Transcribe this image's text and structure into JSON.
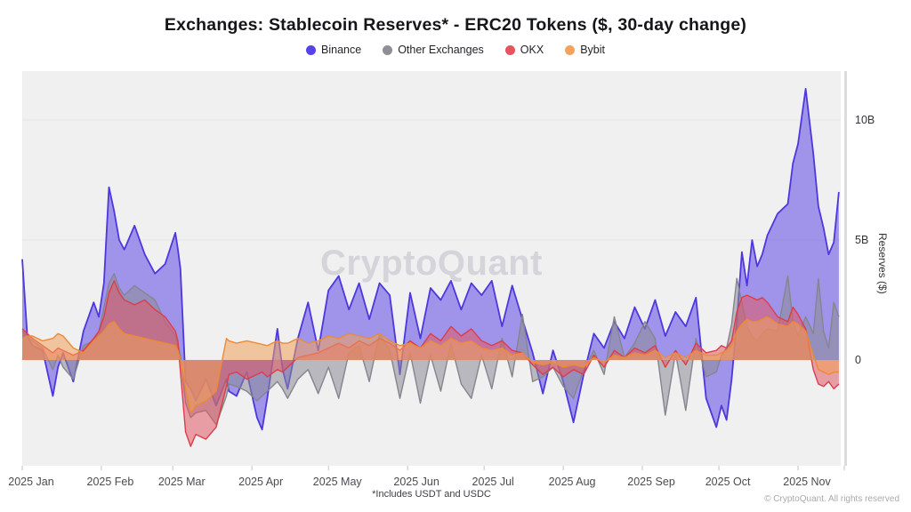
{
  "title": "Exchanges: Stablecoin Reserves* - ERC20 Tokens ($, 30-day change)",
  "watermark": "CryptoQuant",
  "footnote": "*Includes USDT and USDC",
  "copyright": "© CryptoQuant. All rights reserved",
  "legend": {
    "items": [
      {
        "label": "Binance",
        "color": "#5643e6"
      },
      {
        "label": "Other Exchanges",
        "color": "#8f8f98"
      },
      {
        "label": "OKX",
        "color": "#e4555f"
      },
      {
        "label": "Bybit",
        "color": "#f5a25d"
      }
    ]
  },
  "y_axis": {
    "label": "Reserves ($)"
  },
  "chart_data": {
    "type": "area",
    "title": "Exchanges: Stablecoin Reserves* - ERC20 Tokens ($, 30-day change)",
    "xlabel": "",
    "ylabel": "Reserves ($)",
    "x_unit": "days since 2025-01-01",
    "baseline": 0,
    "grid": true,
    "legend_position": "top",
    "ylim": [
      -4.4,
      12.0
    ],
    "yticks": [
      {
        "label": "10B",
        "value": 10
      },
      {
        "label": "5B",
        "value": 5
      },
      {
        "label": "0",
        "value": 0
      }
    ],
    "xticks": [
      {
        "label": "2025 Jan",
        "day": 0
      },
      {
        "label": "2025 Feb",
        "day": 31
      },
      {
        "label": "2025 Mar",
        "day": 59
      },
      {
        "label": "2025 Apr",
        "day": 90
      },
      {
        "label": "2025 May",
        "day": 120
      },
      {
        "label": "2025 Jun",
        "day": 151
      },
      {
        "label": "2025 Jul",
        "day": 181
      },
      {
        "label": "2025 Aug",
        "day": 212
      },
      {
        "label": "2025 Sep",
        "day": 243
      },
      {
        "label": "2025 Oct",
        "day": 273
      },
      {
        "label": "2025 Nov",
        "day": 304
      }
    ],
    "x": [
      0,
      2,
      4,
      8,
      12,
      14,
      16,
      20,
      24,
      28,
      30,
      32,
      34,
      36,
      38,
      40,
      44,
      48,
      52,
      56,
      60,
      61,
      62,
      64,
      66,
      68,
      72,
      76,
      80,
      81,
      84,
      88,
      92,
      94,
      96,
      100,
      102,
      104,
      108,
      112,
      116,
      120,
      124,
      128,
      132,
      136,
      140,
      144,
      148,
      152,
      156,
      160,
      164,
      168,
      172,
      176,
      180,
      184,
      188,
      192,
      196,
      200,
      204,
      208,
      212,
      216,
      220,
      224,
      228,
      232,
      236,
      240,
      244,
      248,
      252,
      256,
      260,
      264,
      268,
      272,
      274,
      276,
      278,
      280,
      282,
      284,
      286,
      288,
      290,
      292,
      296,
      300,
      302,
      304,
      307,
      310,
      312,
      314,
      316,
      318,
      320
    ],
    "series": [
      {
        "name": "Binance",
        "color": "#4c38dd",
        "fill": "rgba(93,72,228,0.55)",
        "values": [
          4.2,
          1.0,
          0.6,
          0.4,
          -1.5,
          -0.3,
          0.3,
          -0.9,
          1.2,
          2.4,
          1.8,
          3.2,
          7.2,
          6.2,
          5.0,
          4.6,
          5.6,
          4.4,
          3.6,
          4.0,
          5.3,
          4.6,
          3.8,
          -0.9,
          -1.2,
          -1.7,
          -0.8,
          -1.9,
          -0.8,
          -1.3,
          -1.5,
          -0.5,
          -2.4,
          -2.9,
          -1.6,
          1.3,
          -0.4,
          -1.2,
          0.9,
          2.4,
          0.4,
          2.9,
          3.5,
          2.1,
          3.2,
          1.7,
          3.2,
          2.7,
          -0.6,
          2.8,
          0.9,
          3.0,
          2.5,
          3.3,
          2.1,
          3.2,
          2.7,
          3.3,
          1.4,
          3.1,
          1.7,
          0.3,
          -1.4,
          0.4,
          -0.9,
          -2.6,
          -0.6,
          1.1,
          0.5,
          1.6,
          0.9,
          2.2,
          1.3,
          2.5,
          1.0,
          2.0,
          1.4,
          2.6,
          -1.6,
          -2.8,
          -1.9,
          -2.5,
          -0.8,
          1.6,
          4.5,
          3.1,
          5.0,
          3.9,
          4.4,
          5.2,
          6.1,
          6.5,
          8.2,
          9.0,
          11.3,
          8.6,
          6.4,
          5.5,
          4.4,
          4.9,
          7.0
        ]
      },
      {
        "name": "Other Exchanges",
        "color": "#85858f",
        "fill": "rgba(138,138,148,0.55)",
        "values": [
          1.2,
          1.0,
          0.8,
          0.5,
          -0.4,
          0.2,
          -0.3,
          -0.8,
          0.6,
          0.8,
          1.2,
          2.2,
          3.2,
          3.6,
          3.0,
          2.7,
          3.1,
          2.8,
          2.5,
          1.6,
          1.0,
          0.6,
          0.2,
          -1.8,
          -2.4,
          -2.2,
          -2.1,
          -2.7,
          -1.5,
          -1.0,
          -1.1,
          -1.3,
          -1.7,
          -1.5,
          -1.3,
          -0.9,
          -1.2,
          -1.6,
          -0.8,
          -0.4,
          -1.4,
          -0.3,
          -1.6,
          0.3,
          0.6,
          -0.9,
          1.1,
          0.4,
          -1.6,
          0.3,
          -1.8,
          0.2,
          -1.3,
          0.7,
          -1.0,
          -1.6,
          0.2,
          -1.2,
          0.9,
          -0.7,
          1.9,
          -0.9,
          -0.7,
          -0.3,
          -1.1,
          -1.6,
          -0.4,
          0.4,
          -0.6,
          1.8,
          0.1,
          0.7,
          1.6,
          0.9,
          -2.3,
          0.3,
          -2.1,
          0.9,
          -0.7,
          -0.5,
          0.2,
          0.5,
          1.5,
          3.4,
          2.4,
          1.4,
          1.0,
          0.8,
          1.1,
          1.3,
          1.2,
          3.5,
          1.6,
          1.0,
          1.8,
          1.1,
          3.4,
          1.2,
          0.5,
          2.4,
          1.8
        ]
      },
      {
        "name": "OKX",
        "color": "#dc3d4b",
        "fill": "rgba(226,88,98,0.55)",
        "values": [
          1.3,
          1.1,
          0.9,
          0.6,
          0.3,
          0.5,
          0.4,
          0.2,
          0.4,
          0.9,
          1.2,
          1.8,
          2.8,
          3.3,
          2.8,
          2.5,
          2.3,
          2.5,
          2.1,
          1.8,
          1.2,
          0.8,
          -0.5,
          -3.0,
          -3.6,
          -3.1,
          -3.3,
          -2.8,
          -1.1,
          -0.6,
          -0.5,
          -0.8,
          -0.6,
          -0.5,
          -0.7,
          -0.4,
          -0.5,
          -0.3,
          0.1,
          0.2,
          0.3,
          0.5,
          0.7,
          0.5,
          0.8,
          0.6,
          0.9,
          0.7,
          0.4,
          0.8,
          0.5,
          1.1,
          0.8,
          1.4,
          1.0,
          1.3,
          0.8,
          0.6,
          0.8,
          0.4,
          0.3,
          -0.2,
          -0.6,
          -0.3,
          -0.7,
          -0.4,
          -0.6,
          0.2,
          -0.3,
          0.4,
          0.1,
          0.5,
          0.3,
          0.6,
          -0.3,
          0.4,
          -0.2,
          0.7,
          0.3,
          0.4,
          0.6,
          0.5,
          0.8,
          2.0,
          2.6,
          2.7,
          2.6,
          2.5,
          2.6,
          2.4,
          1.8,
          1.6,
          2.2,
          1.9,
          1.3,
          -0.4,
          -1.0,
          -1.1,
          -0.9,
          -1.2,
          -1.0
        ]
      },
      {
        "name": "Bybit",
        "color": "#ed8a35",
        "fill": "rgba(240,160,87,0.55)",
        "values": [
          0.9,
          1.0,
          1.0,
          0.8,
          0.9,
          1.1,
          1.0,
          0.5,
          0.3,
          0.8,
          1.0,
          1.2,
          1.5,
          1.6,
          1.3,
          1.1,
          1.0,
          0.9,
          0.8,
          0.7,
          0.6,
          0.4,
          0.0,
          -1.2,
          -2.2,
          -1.9,
          -1.7,
          -1.3,
          0.9,
          0.8,
          0.7,
          0.8,
          0.7,
          0.65,
          0.6,
          0.8,
          0.7,
          0.7,
          0.9,
          0.7,
          0.8,
          1.0,
          0.9,
          1.1,
          1.0,
          0.9,
          1.1,
          0.8,
          0.6,
          0.7,
          0.5,
          0.8,
          0.6,
          0.9,
          0.7,
          0.8,
          0.5,
          0.4,
          0.5,
          0.2,
          0.3,
          -0.1,
          -0.2,
          -0.1,
          -0.3,
          -0.2,
          -0.3,
          0.1,
          -0.1,
          0.2,
          0.1,
          0.3,
          0.2,
          0.4,
          0.1,
          0.3,
          0.1,
          0.4,
          0.2,
          0.2,
          0.3,
          0.4,
          0.6,
          1.2,
          1.5,
          1.7,
          1.6,
          1.6,
          1.7,
          1.8,
          1.5,
          1.4,
          1.6,
          1.5,
          1.2,
          0.2,
          -0.4,
          -0.5,
          -0.6,
          -0.5,
          -0.5
        ]
      }
    ]
  }
}
